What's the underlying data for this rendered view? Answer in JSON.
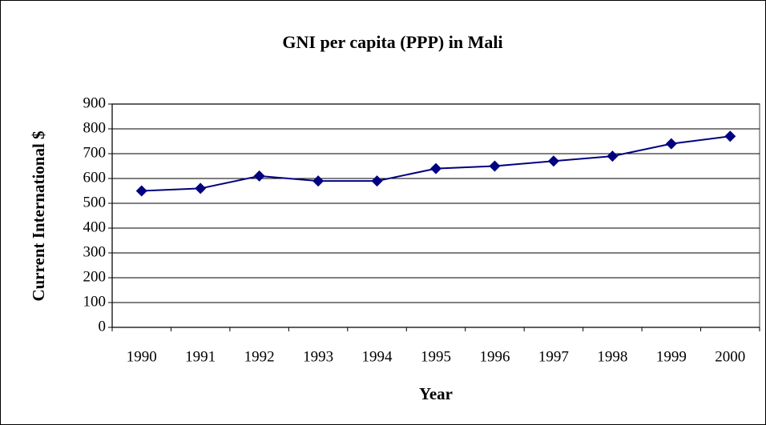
{
  "chart_data": {
    "type": "line",
    "title": "GNI per capita (PPP) in Mali",
    "x_label": "Year",
    "y_label": "Current International $",
    "categories": [
      "1990",
      "1991",
      "1992",
      "1993",
      "1994",
      "1995",
      "1996",
      "1997",
      "1998",
      "1999",
      "2000"
    ],
    "values": [
      550,
      560,
      610,
      590,
      590,
      640,
      650,
      670,
      690,
      740,
      770
    ],
    "color": "#000080",
    "ylim": [
      0,
      900
    ],
    "yticks": [
      0,
      100,
      200,
      300,
      400,
      500,
      600,
      700,
      800,
      900
    ],
    "grid": true
  }
}
